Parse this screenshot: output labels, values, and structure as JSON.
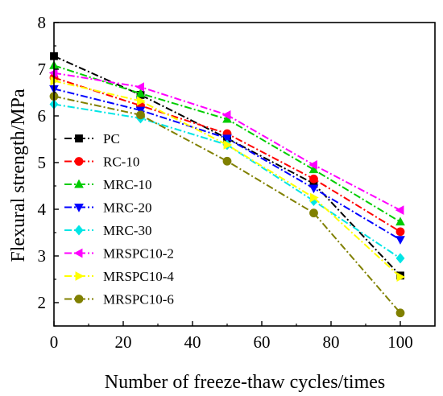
{
  "chart_data": {
    "type": "line",
    "xlabel": "Number of freeze-thaw cycles/times",
    "ylabel": "Flexural strength/MPa",
    "xlim": [
      0,
      110
    ],
    "ylim": [
      1.5,
      8
    ],
    "xticks": [
      0,
      20,
      40,
      60,
      80,
      100
    ],
    "yticks": [
      2,
      3,
      4,
      5,
      6,
      7,
      8
    ],
    "x": [
      0,
      25,
      50,
      75,
      100
    ],
    "grid": false,
    "legend_position": "left",
    "series": [
      {
        "name": "PC",
        "color": "#000000",
        "marker": "square",
        "values": [
          7.28,
          6.45,
          5.52,
          4.55,
          2.58
        ]
      },
      {
        "name": "RC-10",
        "color": "#ff0000",
        "marker": "circle",
        "values": [
          6.82,
          6.22,
          5.62,
          4.65,
          3.52
        ]
      },
      {
        "name": "MRC-10",
        "color": "#00cc00",
        "marker": "triangle-up",
        "values": [
          7.08,
          6.48,
          5.93,
          4.85,
          3.73
        ]
      },
      {
        "name": "MRC-20",
        "color": "#0000ff",
        "marker": "triangle-down",
        "values": [
          6.58,
          6.12,
          5.52,
          4.45,
          3.35
        ]
      },
      {
        "name": "MRC-30",
        "color": "#00e5e5",
        "marker": "diamond",
        "values": [
          6.25,
          5.95,
          5.38,
          4.18,
          2.95
        ]
      },
      {
        "name": "MRSPC10-2",
        "color": "#ff00ff",
        "marker": "triangle-left",
        "values": [
          6.92,
          6.62,
          6.02,
          4.95,
          3.98
        ]
      },
      {
        "name": "MRSPC10-4",
        "color": "#ffff00",
        "marker": "triangle-right",
        "values": [
          6.75,
          6.32,
          5.38,
          4.25,
          2.55
        ]
      },
      {
        "name": "MRSPC10-6",
        "color": "#808000",
        "marker": "circle",
        "values": [
          6.42,
          6.02,
          5.03,
          3.92,
          1.78
        ]
      }
    ]
  }
}
